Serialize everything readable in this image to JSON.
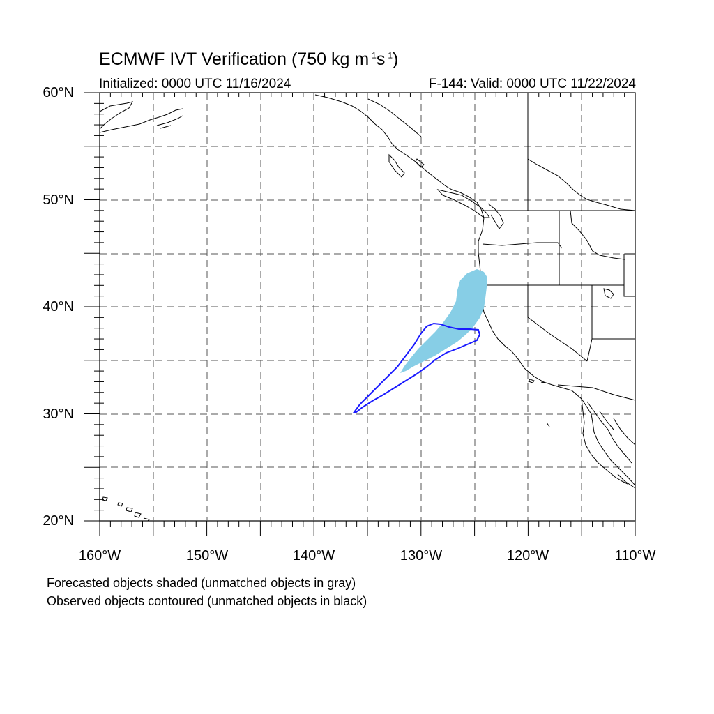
{
  "title": {
    "prefix": "ECMWF IVT Verification (750 kg m",
    "sup1": "-1",
    "mid": "s",
    "sup2": "-1",
    "suffix": ")"
  },
  "subtitle_left": "Initialized: 0000 UTC 11/16/2024",
  "subtitle_right": "F-144: Valid: 0000 UTC 11/22/2024",
  "lat_labels": [
    "60°N",
    "50°N",
    "40°N",
    "30°N",
    "20°N"
  ],
  "lon_labels": [
    "160°W",
    "150°W",
    "140°W",
    "130°W",
    "120°W",
    "110°W"
  ],
  "footnotes": [
    "Forecasted objects shaded (unmatched objects in gray)",
    "Observed objects contoured (unmatched objects in black)"
  ],
  "colors": {
    "forecast_fill": "#87cee6",
    "observed_contour": "#1a1aff",
    "grid": "#555555"
  }
}
